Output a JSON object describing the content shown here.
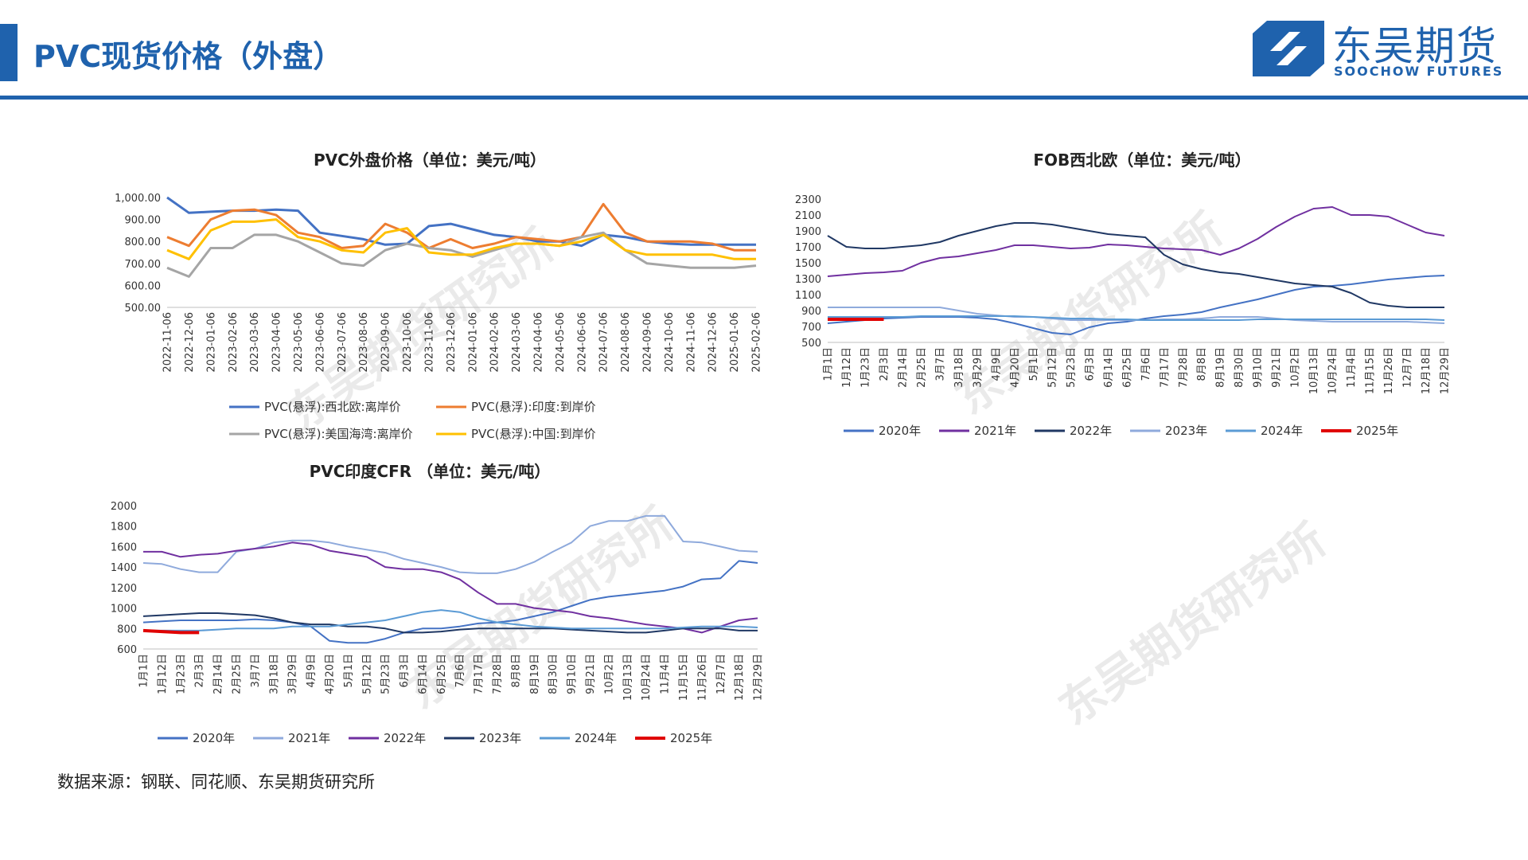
{
  "header": {
    "title": "PVC现货价格（外盘）"
  },
  "logo": {
    "cn": "东吴期货",
    "en": "SOOCHOW FUTURES"
  },
  "watermark": "东吴期货研究所",
  "source": "数据来源：钢联、同花顺、东吴期货研究所",
  "chart_data": [
    {
      "id": "c1",
      "type": "line",
      "title": "PVC外盘价格（单位：美元/吨）",
      "x_labels": [
        "2022-11-06",
        "2022-12-06",
        "2023-01-06",
        "2023-02-06",
        "2023-03-06",
        "2023-04-06",
        "2023-05-06",
        "2023-06-06",
        "2023-07-06",
        "2023-08-06",
        "2023-09-06",
        "2023-10-06",
        "2023-11-06",
        "2023-12-06",
        "2024-01-06",
        "2024-02-06",
        "2024-03-06",
        "2024-04-06",
        "2024-05-06",
        "2024-06-06",
        "2024-07-06",
        "2024-08-06",
        "2024-09-06",
        "2024-10-06",
        "2024-11-06",
        "2024-12-06",
        "2025-01-06",
        "2025-02-06"
      ],
      "y_ticks": [
        "500.00",
        "600.00",
        "700.00",
        "800.00",
        "900.00",
        "1,000.00"
      ],
      "ylim": [
        500,
        1000
      ],
      "grid": false,
      "legend_position": "bottom",
      "series": [
        {
          "name": "PVC(悬浮):西北欧:离岸价",
          "color": "#4472c4",
          "values": [
            1000,
            930,
            935,
            940,
            940,
            945,
            940,
            840,
            825,
            810,
            785,
            790,
            870,
            880,
            855,
            830,
            820,
            800,
            800,
            780,
            830,
            820,
            800,
            790,
            785,
            785,
            785,
            785
          ]
        },
        {
          "name": "PVC(悬浮):印度:到岸价",
          "color": "#ed7d31",
          "values": [
            820,
            780,
            900,
            940,
            945,
            920,
            840,
            820,
            770,
            780,
            880,
            840,
            770,
            810,
            770,
            790,
            820,
            810,
            800,
            820,
            970,
            840,
            800,
            800,
            800,
            790,
            760,
            760
          ]
        },
        {
          "name": "PVC(悬浮):美国海湾:离岸价",
          "color": "#a5a5a5",
          "values": [
            680,
            640,
            770,
            770,
            830,
            830,
            800,
            750,
            700,
            690,
            760,
            790,
            770,
            760,
            730,
            760,
            790,
            790,
            780,
            820,
            840,
            760,
            700,
            690,
            680,
            680,
            680,
            690
          ]
        },
        {
          "name": "PVC(悬浮):中国:到岸价",
          "color": "#ffc000",
          "values": [
            760,
            720,
            850,
            890,
            890,
            900,
            820,
            800,
            760,
            750,
            840,
            860,
            750,
            740,
            740,
            770,
            790,
            790,
            780,
            800,
            830,
            760,
            740,
            740,
            740,
            740,
            720,
            720
          ]
        }
      ]
    },
    {
      "id": "c2",
      "type": "line",
      "title": "FOB西北欧（单位：美元/吨）",
      "x_labels": [
        "1月1日",
        "1月12日",
        "1月23日",
        "2月3日",
        "2月14日",
        "2月25日",
        "3月7日",
        "3月18日",
        "3月29日",
        "4月9日",
        "4月20日",
        "5月1日",
        "5月12日",
        "5月23日",
        "6月3日",
        "6月14日",
        "6月25日",
        "7月6日",
        "7月17日",
        "7月28日",
        "8月8日",
        "8月19日",
        "8月30日",
        "9月10日",
        "9月21日",
        "10月2日",
        "10月13日",
        "10月24日",
        "11月4日",
        "11月15日",
        "11月26日",
        "12月7日",
        "12月18日",
        "12月29日"
      ],
      "y_ticks": [
        "500",
        "700",
        "900",
        "1100",
        "1300",
        "1500",
        "1700",
        "1900",
        "2100",
        "2300"
      ],
      "ylim": [
        500,
        2300
      ],
      "grid": false,
      "legend_position": "bottom",
      "series": [
        {
          "name": "2020年",
          "color": "#4472c4",
          "values": [
            740,
            760,
            780,
            800,
            810,
            820,
            820,
            820,
            810,
            790,
            740,
            680,
            620,
            600,
            690,
            740,
            760,
            800,
            830,
            850,
            880,
            940,
            990,
            1040,
            1100,
            1160,
            1200,
            1210,
            1230,
            1260,
            1290,
            1310,
            1330,
            1340
          ]
        },
        {
          "name": "2021年",
          "color": "#7030a0",
          "values": [
            1330,
            1350,
            1370,
            1380,
            1400,
            1500,
            1560,
            1580,
            1620,
            1660,
            1720,
            1720,
            1700,
            1680,
            1690,
            1730,
            1720,
            1700,
            1680,
            1670,
            1660,
            1600,
            1680,
            1800,
            1950,
            2080,
            2180,
            2200,
            2100,
            2100,
            2080,
            1980,
            1880,
            1840
          ]
        },
        {
          "name": "2022年",
          "color": "#203864",
          "values": [
            1840,
            1700,
            1680,
            1680,
            1700,
            1720,
            1760,
            1840,
            1900,
            1960,
            2000,
            2000,
            1980,
            1940,
            1900,
            1860,
            1840,
            1820,
            1600,
            1480,
            1420,
            1380,
            1360,
            1320,
            1280,
            1240,
            1220,
            1200,
            1120,
            1000,
            960,
            940,
            940,
            940
          ]
        },
        {
          "name": "2023年",
          "color": "#8faadc",
          "values": [
            940,
            940,
            940,
            940,
            940,
            940,
            940,
            900,
            860,
            840,
            820,
            820,
            800,
            780,
            780,
            780,
            780,
            780,
            790,
            790,
            800,
            820,
            820,
            820,
            800,
            780,
            770,
            760,
            760,
            760,
            760,
            760,
            750,
            740
          ]
        },
        {
          "name": "2024年",
          "color": "#5b9bd5",
          "values": [
            820,
            820,
            820,
            820,
            820,
            830,
            830,
            830,
            830,
            830,
            830,
            820,
            810,
            800,
            800,
            790,
            790,
            780,
            780,
            780,
            780,
            780,
            780,
            790,
            790,
            790,
            790,
            790,
            790,
            790,
            790,
            790,
            790,
            780
          ]
        },
        {
          "name": "2025年",
          "color": "#e00000",
          "values": [
            790,
            790,
            790,
            790
          ]
        }
      ]
    },
    {
      "id": "c3",
      "type": "line",
      "title": "PVC印度CFR （单位：美元/吨）",
      "x_labels": [
        "1月1日",
        "1月12日",
        "1月23日",
        "2月3日",
        "2月14日",
        "2月25日",
        "3月7日",
        "3月18日",
        "3月29日",
        "4月9日",
        "4月20日",
        "5月1日",
        "5月12日",
        "5月23日",
        "6月3日",
        "6月14日",
        "6月25日",
        "7月6日",
        "7月17日",
        "7月28日",
        "8月8日",
        "8月19日",
        "8月30日",
        "9月10日",
        "9月21日",
        "10月2日",
        "10月13日",
        "10月24日",
        "11月4日",
        "11月15日",
        "11月26日",
        "12月7日",
        "12月18日",
        "12月29日"
      ],
      "y_ticks": [
        "600",
        "800",
        "1000",
        "1200",
        "1400",
        "1600",
        "1800",
        "2000"
      ],
      "ylim": [
        600,
        2000
      ],
      "grid": false,
      "legend_position": "bottom",
      "series": [
        {
          "name": "2020年",
          "color": "#4472c4",
          "values": [
            860,
            870,
            880,
            880,
            880,
            880,
            890,
            880,
            860,
            820,
            680,
            660,
            660,
            700,
            760,
            800,
            800,
            820,
            850,
            860,
            880,
            920,
            960,
            1020,
            1080,
            1110,
            1130,
            1150,
            1170,
            1210,
            1280,
            1290,
            1460,
            1440
          ]
        },
        {
          "name": "2021年",
          "color": "#8faadc",
          "values": [
            1440,
            1430,
            1380,
            1350,
            1350,
            1550,
            1580,
            1640,
            1660,
            1660,
            1640,
            1600,
            1570,
            1540,
            1480,
            1440,
            1400,
            1350,
            1340,
            1340,
            1380,
            1450,
            1550,
            1640,
            1800,
            1850,
            1850,
            1900,
            1900,
            1650,
            1640,
            1600,
            1560,
            1550
          ]
        },
        {
          "name": "2022年",
          "color": "#7030a0",
          "values": [
            1550,
            1550,
            1500,
            1520,
            1530,
            1560,
            1580,
            1600,
            1640,
            1620,
            1560,
            1530,
            1500,
            1400,
            1380,
            1380,
            1350,
            1280,
            1150,
            1040,
            1040,
            1000,
            980,
            960,
            920,
            900,
            870,
            840,
            820,
            800,
            760,
            820,
            880,
            900
          ]
        },
        {
          "name": "2023年",
          "color": "#203864",
          "values": [
            920,
            930,
            940,
            950,
            950,
            940,
            930,
            900,
            860,
            840,
            840,
            820,
            820,
            800,
            760,
            760,
            770,
            790,
            800,
            800,
            800,
            800,
            800,
            790,
            780,
            770,
            760,
            760,
            780,
            800,
            800,
            800,
            780,
            780
          ]
        },
        {
          "name": "2024年",
          "color": "#5b9bd5",
          "values": [
            780,
            780,
            780,
            780,
            790,
            800,
            800,
            800,
            820,
            820,
            820,
            840,
            860,
            880,
            920,
            960,
            980,
            960,
            900,
            860,
            840,
            820,
            810,
            800,
            800,
            800,
            800,
            800,
            800,
            810,
            820,
            820,
            820,
            810
          ]
        },
        {
          "name": "2025年",
          "color": "#e00000",
          "values": [
            780,
            770,
            760,
            760
          ]
        }
      ]
    }
  ]
}
